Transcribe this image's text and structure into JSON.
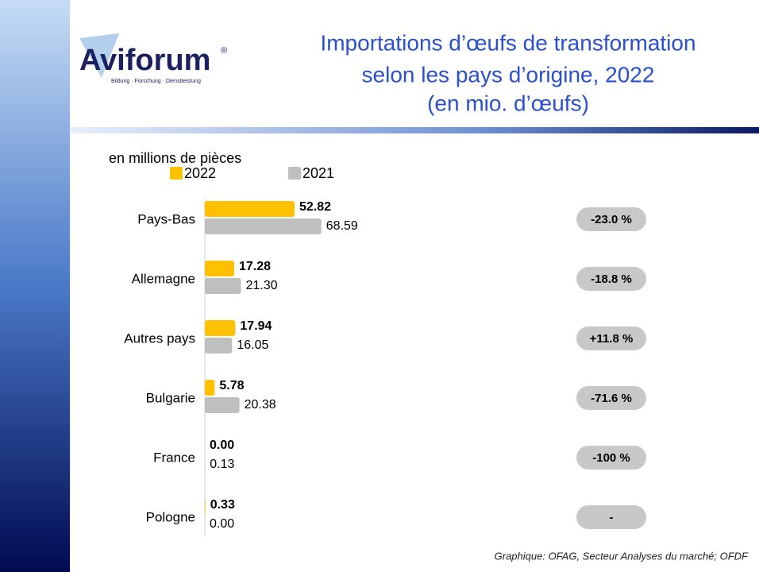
{
  "logo": {
    "name": "Aviforum",
    "mark": "®",
    "tagline": "Bildung · Forschung · Dienstleistung"
  },
  "chart_data": {
    "type": "bar",
    "orientation": "horizontal",
    "title": [
      "Importations d’œufs de transformation",
      "selon les pays d’origine, 2022",
      "(en mio. d’œufs)"
    ],
    "unit_label": "en millions de pièces",
    "categories": [
      "Pays-Bas",
      "Allemagne",
      "Autres pays",
      "Bulgarie",
      "France",
      "Pologne"
    ],
    "series": [
      {
        "name": "2022",
        "color": "#ffc000",
        "values": [
          52.82,
          17.28,
          17.94,
          5.78,
          0,
          0.33
        ],
        "value_labels": [
          "52.82",
          "17.28",
          "17.94",
          "5.78",
          "0.00",
          "0.33"
        ]
      },
      {
        "name": "2021",
        "color": "#bfbfbf",
        "values": [
          68.59,
          21.3,
          16.05,
          20.38,
          0.13,
          0
        ],
        "value_labels": [
          "68.59",
          "21.30",
          "16.05",
          "20.38",
          "0.13",
          "0.00"
        ]
      }
    ],
    "change_labels": [
      "-23.0 %",
      "-18.8 %",
      "+11.8 %",
      "-71.6 %",
      "-100 %",
      "-"
    ],
    "source": "Graphique: OFAG, Secteur Analyses du marché; OFDF"
  }
}
